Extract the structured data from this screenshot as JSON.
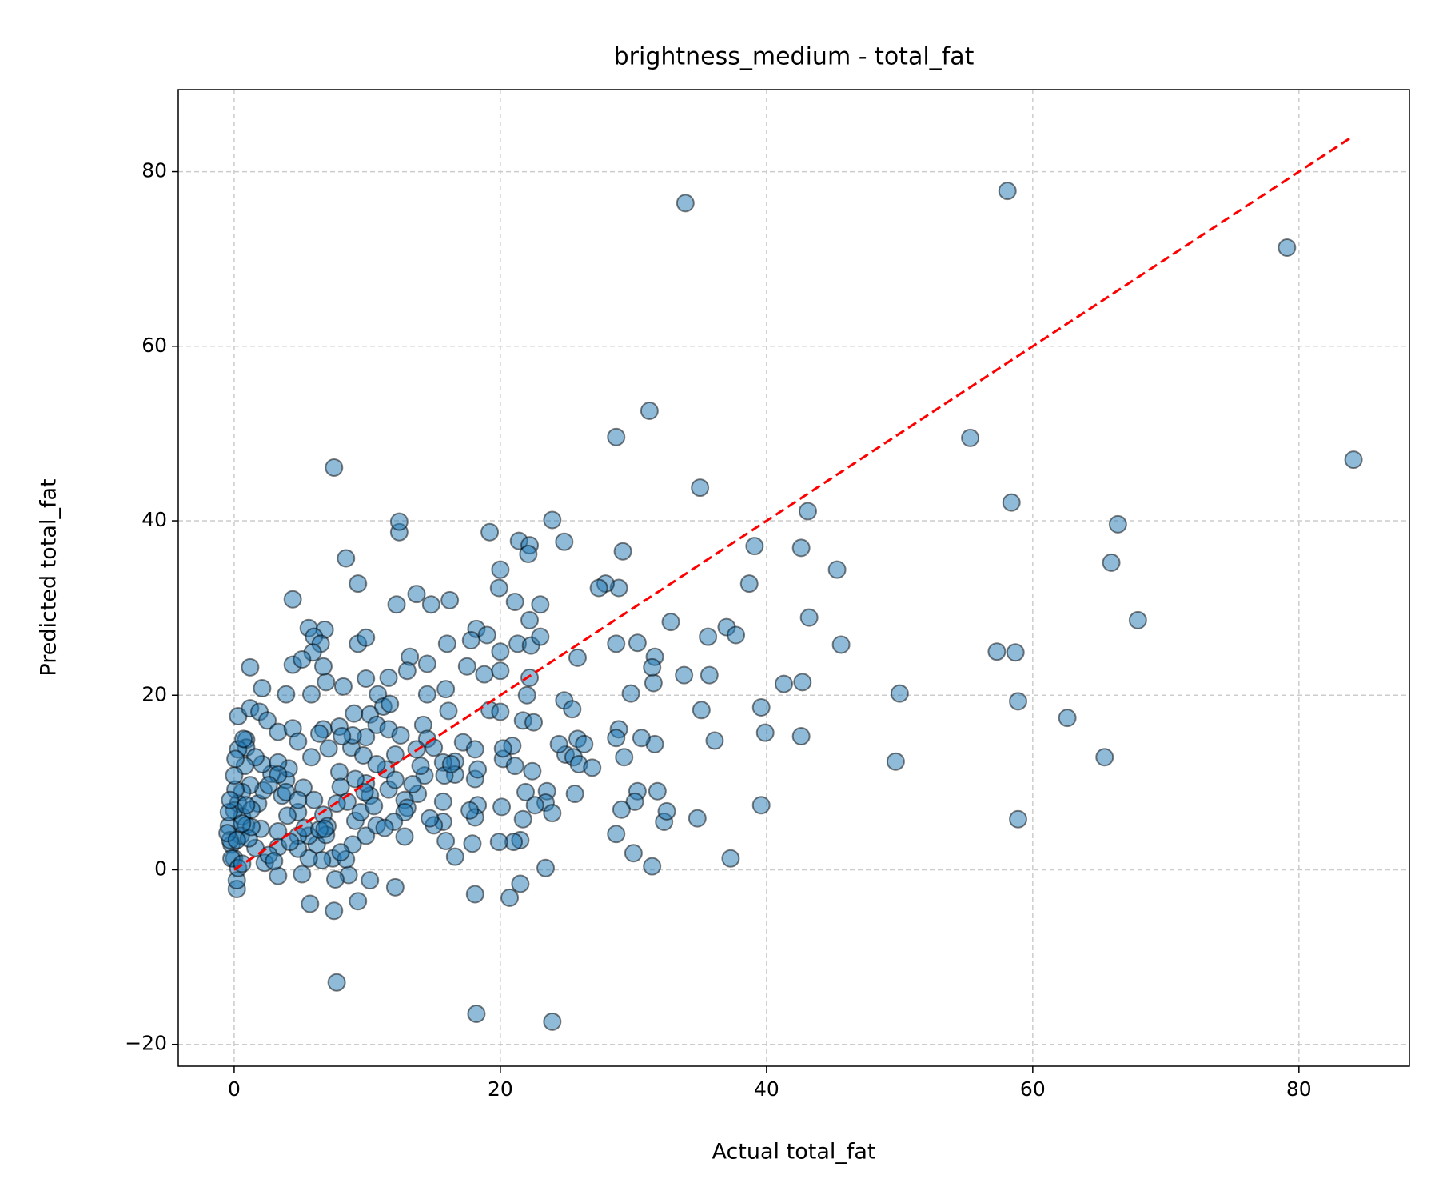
{
  "chart_data": {
    "type": "scatter",
    "title": "brightness_medium - total_fat",
    "xlabel": "Actual total_fat",
    "ylabel": "Predicted total_fat",
    "color": "#1f77b4",
    "edgecolor": "#000000",
    "grid": true,
    "xlim": [
      -4.2,
      88.3
    ],
    "ylim": [
      -22.5,
      89.4
    ],
    "xticks": [
      0,
      20,
      40,
      60,
      80
    ],
    "yticks": [
      {
        "value": -20,
        "label": "−20"
      },
      0,
      20,
      40,
      60,
      80
    ],
    "reference_line": {
      "x": [
        0,
        84.1
      ],
      "y": [
        0,
        84.1
      ],
      "color": "#ff0000",
      "style": "dashed"
    },
    "x": [
      33.9,
      58.1,
      79.1,
      84.1,
      55.3,
      58.4,
      66.4,
      65.9,
      67.9,
      57.3,
      58.7,
      58.9,
      62.6,
      65.4,
      58.9,
      50.0,
      49.7,
      45.3,
      45.6,
      43.1,
      42.6,
      43.2,
      42.7,
      41.3,
      42.6,
      39.6,
      39.9,
      39.6,
      39.1,
      38.7,
      37.0,
      37.7,
      37.3,
      35.0,
      31.2,
      28.7,
      29.2,
      28.9,
      27.9,
      27.4,
      28.7,
      30.3,
      32.8,
      33.8,
      35.7,
      35.6,
      35.1,
      36.1,
      34.8,
      31.6,
      31.5,
      31.4,
      31.6,
      30.6,
      29.8,
      28.9,
      28.7,
      29.3,
      30.3,
      30.1,
      29.1,
      28.7,
      30.0,
      31.4,
      31.8,
      32.3,
      32.5,
      23.9,
      18.2,
      7.7,
      7.5,
      12.4,
      12.4,
      8.4,
      9.3,
      4.4,
      12.2,
      13.7,
      14.8,
      16.2,
      19.2,
      20.0,
      19.9,
      23.9,
      21.4,
      22.2,
      22.1,
      24.8,
      21.1,
      23.0,
      22.2,
      18.2,
      17.8,
      19.0,
      16.0,
      21.3,
      22.3,
      23.0,
      20.0,
      17.5,
      18.8,
      20.0,
      22.2,
      25.8,
      24.8,
      25.4,
      22.0,
      21.7,
      22.5,
      19.2,
      20.0,
      15.9,
      14.5,
      16.1,
      14.5,
      13.2,
      13.0,
      11.6,
      10.8,
      9.9,
      8.2,
      6.9,
      5.6,
      6.8,
      6.0,
      6.5,
      5.9,
      6.7,
      4.4,
      5.1,
      9.3,
      9.9,
      1.2,
      2.1,
      3.9,
      5.8,
      0.3,
      1.2,
      1.9,
      2.5,
      0.9,
      0.9,
      3.3,
      4.4,
      4.8,
      6.7,
      7.9,
      7.1,
      8.8,
      9.7,
      10.2,
      10.7,
      11.2,
      11.7,
      11.6,
      12.5,
      14.2,
      14.5,
      15.0,
      17.2,
      16.6,
      15.7,
      18.1,
      20.2,
      21.1,
      20.9,
      20.2,
      22.4,
      24.9,
      25.5,
      25.9,
      24.4,
      25.8,
      26.3,
      26.9,
      25.6,
      23.5,
      23.4,
      21.9,
      22.6,
      21.7,
      20.1,
      21.5,
      21.0,
      19.9,
      23.9,
      23.4,
      21.5,
      20.7,
      18.1,
      18.3,
      18.1,
      17.9,
      18.1,
      18.3,
      16.6,
      15.8,
      15.7,
      15.7,
      15.0,
      14.7,
      15.9,
      16.6,
      14.3,
      13.8,
      12.8,
      12.8,
      12.1,
      10.2,
      9.3,
      7.5,
      5.7,
      5.1,
      3.3,
      2.3,
      0.2,
      0.2,
      7.4,
      8.6,
      7.6,
      8.4,
      10.2,
      9.9,
      11.4,
      10.7,
      9.1,
      7.9,
      8.0,
      8.5,
      9.1,
      9.9,
      10.7,
      9.5,
      7.7,
      6.7,
      7.0,
      6.2,
      6.9,
      5.6,
      4.8,
      4.8,
      6.0,
      5.2,
      3.9,
      3.6,
      4.0,
      3.3,
      3.3,
      2.6,
      3.0,
      1.6,
      2.0,
      1.8,
      2.2,
      2.8,
      2.1,
      1.6,
      0.8,
      1.2,
      0.6,
      0.3,
      0.6,
      0.9,
      0.5,
      -0.2,
      0.0,
      -0.4,
      0.0,
      0.1,
      0.0,
      0.3,
      0.7,
      0.1,
      -0.3,
      -0.2,
      0.3,
      1.1,
      1.3,
      1.3,
      -0.5,
      -0.4,
      -0.3,
      0.6,
      0.2,
      0.6,
      0.9,
      3.9,
      4.8,
      5.3,
      6.4,
      6.8,
      6.6,
      5.6,
      13.0,
      13.4,
      14.0,
      12.1,
      9.9,
      9.0,
      8.9,
      8.1,
      6.4,
      5.8,
      4.1,
      3.3,
      12.8,
      12.0,
      11.3,
      8.9,
      8.0,
      4.8,
      4.2,
      10.5,
      9.8,
      11.6,
      12.1,
      13.7,
      16.3,
      17.7,
      3.3,
      2.6
    ],
    "values": [
      76.4,
      77.8,
      71.3,
      47.0,
      49.5,
      42.1,
      39.6,
      35.2,
      28.6,
      25.0,
      24.9,
      19.3,
      17.4,
      12.9,
      5.8,
      20.2,
      12.4,
      34.4,
      25.8,
      41.1,
      36.9,
      28.9,
      21.5,
      21.3,
      15.3,
      18.6,
      15.7,
      7.4,
      37.1,
      32.8,
      27.8,
      26.9,
      1.3,
      43.8,
      52.6,
      49.6,
      36.5,
      32.3,
      32.8,
      32.3,
      25.9,
      26.0,
      28.4,
      22.3,
      22.3,
      26.7,
      18.3,
      14.8,
      5.9,
      24.4,
      21.4,
      23.2,
      14.4,
      15.1,
      20.2,
      16.1,
      15.1,
      12.9,
      9.0,
      7.8,
      6.9,
      4.1,
      1.9,
      0.4,
      9.0,
      5.5,
      6.7,
      -17.4,
      -16.5,
      -12.9,
      46.1,
      38.7,
      39.9,
      35.7,
      32.8,
      31.0,
      30.4,
      31.6,
      30.4,
      30.9,
      38.7,
      34.4,
      32.3,
      40.1,
      37.7,
      37.2,
      36.2,
      37.6,
      30.7,
      30.4,
      28.6,
      27.6,
      26.3,
      26.9,
      25.9,
      25.9,
      25.7,
      26.7,
      25.0,
      23.3,
      22.4,
      22.8,
      22.0,
      24.3,
      19.4,
      18.4,
      20.0,
      17.1,
      16.9,
      18.3,
      18.1,
      20.7,
      20.1,
      18.2,
      23.6,
      24.4,
      22.8,
      22.0,
      20.1,
      21.9,
      21.0,
      21.5,
      27.7,
      27.5,
      26.7,
      25.9,
      24.9,
      23.3,
      23.5,
      24.1,
      25.9,
      26.6,
      23.2,
      20.8,
      20.1,
      20.1,
      17.6,
      18.5,
      18.1,
      17.1,
      14.9,
      14.0,
      15.8,
      16.2,
      14.7,
      16.1,
      16.4,
      13.9,
      14.0,
      13.1,
      17.8,
      16.6,
      18.7,
      19.0,
      16.1,
      15.4,
      16.6,
      15.0,
      14.0,
      14.6,
      12.4,
      12.3,
      13.8,
      12.7,
      11.9,
      14.2,
      13.9,
      11.3,
      13.2,
      12.9,
      12.1,
      14.4,
      15.0,
      14.4,
      11.7,
      8.7,
      9.0,
      7.7,
      8.9,
      7.4,
      5.8,
      7.2,
      3.4,
      3.2,
      3.2,
      6.5,
      0.2,
      -1.6,
      -3.2,
      -2.8,
      7.4,
      6.0,
      3.0,
      10.4,
      11.5,
      10.9,
      10.8,
      7.8,
      5.5,
      5.1,
      5.9,
      3.3,
      1.5,
      10.8,
      8.7,
      8.0,
      3.8,
      -2.0,
      -1.2,
      -3.6,
      -4.7,
      -3.9,
      -0.5,
      -0.7,
      0.8,
      -2.2,
      -1.2,
      1.3,
      -0.6,
      -1.1,
      1.2,
      8.5,
      9.9,
      11.5,
      12.1,
      10.4,
      11.2,
      9.5,
      7.8,
      5.6,
      3.9,
      5.1,
      6.6,
      7.6,
      6.3,
      5.0,
      2.9,
      4.0,
      3.9,
      3.9,
      6.6,
      8.0,
      9.4,
      10.3,
      8.5,
      6.2,
      4.4,
      2.6,
      1.7,
      1.0,
      2.5,
      4.7,
      7.6,
      9.1,
      11.0,
      12.1,
      12.9,
      11.9,
      9.7,
      8.9,
      7.6,
      6.1,
      5.1,
      3.9,
      2.9,
      1.3,
      5.0,
      6.8,
      9.2,
      10.8,
      13.8,
      15.0,
      12.7,
      3.4,
      1.3,
      0.2,
      3.6,
      4.9,
      6.9,
      4.2,
      6.6,
      8.0,
      0.7,
      3.4,
      5.3,
      7.4,
      8.9,
      8.0,
      4.8,
      4.6,
      4.7,
      1.1,
      1.3,
      7.1,
      9.8,
      11.9,
      13.2,
      15.2,
      17.9,
      15.4,
      15.3,
      15.6,
      12.9,
      11.6,
      12.3,
      6.6,
      5.5,
      4.8,
      2.9,
      2.0,
      2.4,
      3.2,
      7.3,
      8.9,
      9.2,
      10.3,
      13.8,
      12.1,
      6.8,
      10.9,
      9.7
    ]
  }
}
